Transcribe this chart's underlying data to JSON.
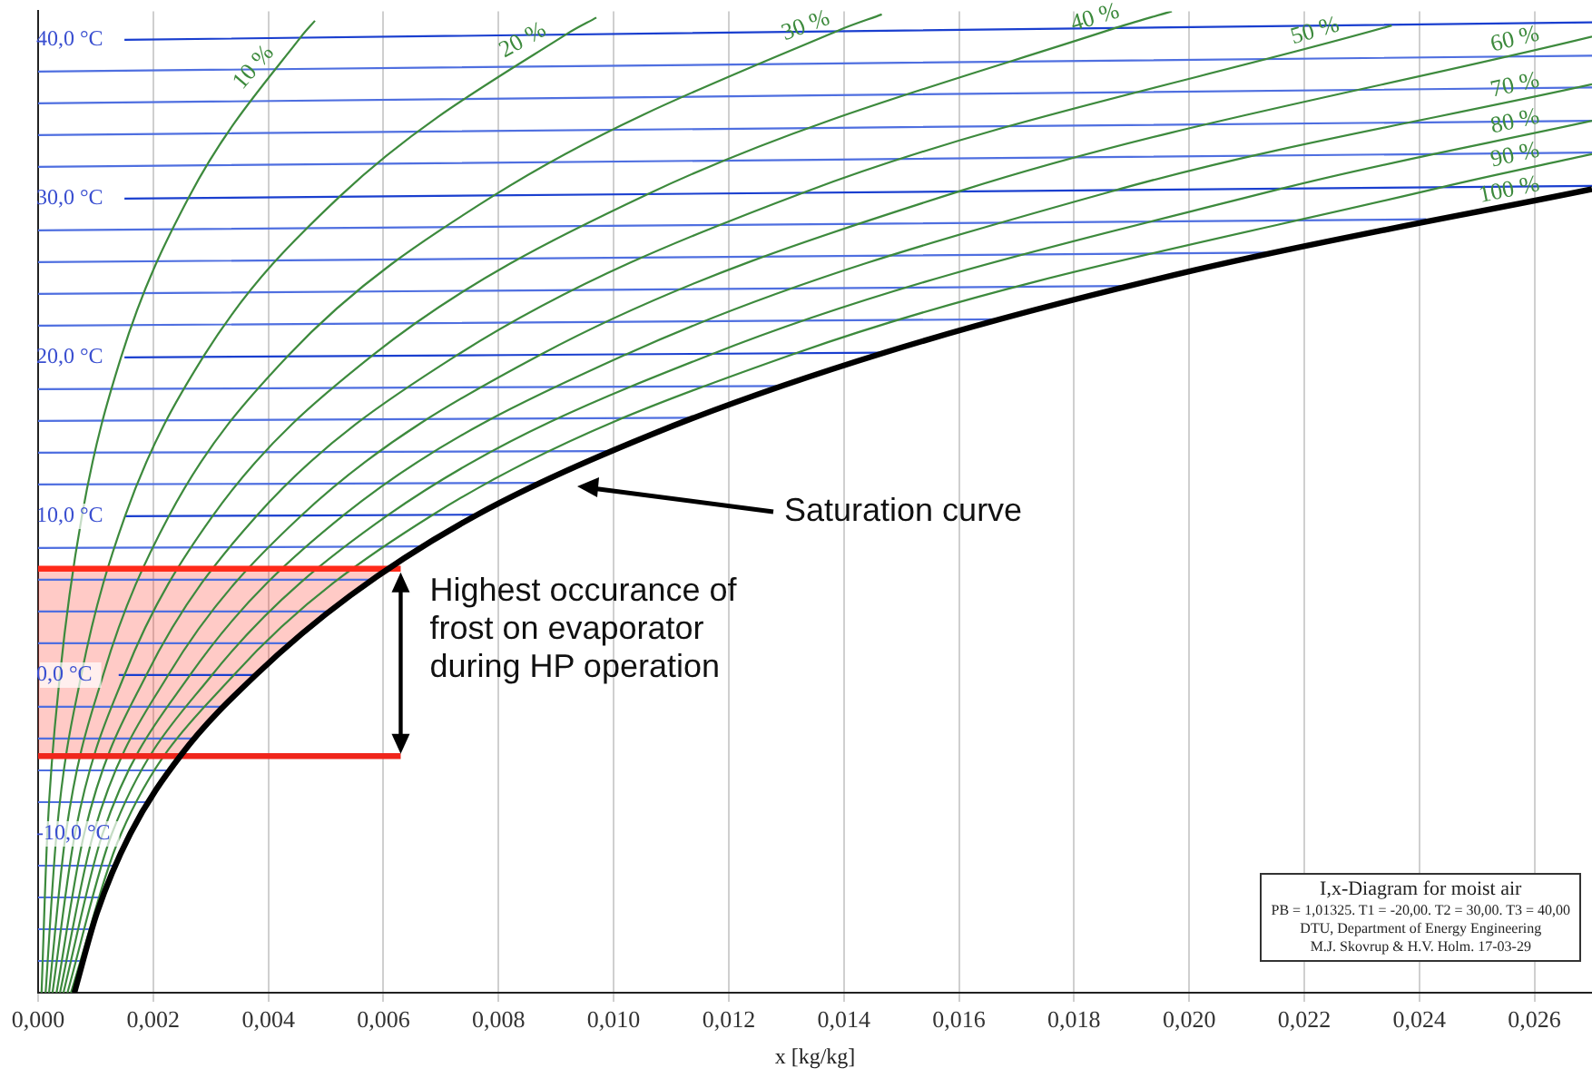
{
  "chart_data": {
    "type": "line",
    "xlabel": "x [kg/kg]",
    "xlim": [
      0,
      0.027
    ],
    "ylim": [
      -20,
      41.8
    ],
    "xticks": [
      {
        "value": 0,
        "label": "0,000"
      },
      {
        "value": 0.002,
        "label": "0,002"
      },
      {
        "value": 0.004,
        "label": "0,004"
      },
      {
        "value": 0.006,
        "label": "0,006"
      },
      {
        "value": 0.008,
        "label": "0,008"
      },
      {
        "value": 0.01,
        "label": "0,010"
      },
      {
        "value": 0.012,
        "label": "0,012"
      },
      {
        "value": 0.014,
        "label": "0,014"
      },
      {
        "value": 0.016,
        "label": "0,016"
      },
      {
        "value": 0.018,
        "label": "0,018"
      },
      {
        "value": 0.02,
        "label": "0,020"
      },
      {
        "value": 0.022,
        "label": "0,022"
      },
      {
        "value": 0.024,
        "label": "0,024"
      },
      {
        "value": 0.026,
        "label": "0,026"
      }
    ],
    "yticks": [
      {
        "value": -10,
        "label": "-10,0 °C"
      },
      {
        "value": 0,
        "label": "0,0 °C"
      },
      {
        "value": 10,
        "label": "10,0 °C"
      },
      {
        "value": 20,
        "label": "20,0 °C"
      },
      {
        "value": 30,
        "label": "30,0 °C"
      },
      {
        "value": 40,
        "label": "40,0 °C"
      }
    ],
    "grid": "x",
    "legend": false,
    "annotations": [
      "I,x-Diagram for moist air",
      "PB = 1,01325. T1 = -20,00. T2 = 30,00. T3 = 40,00",
      "DTU, Department of Energy Engineering",
      "M.J. Skovrup & H.V. Holm. 17-03-29",
      "Saturation curve",
      {
        "text": "Highest occurance of frost on evaporator during HP operation",
        "x": 0.0063,
        "y": 6.7
      }
    ],
    "series": [
      {
        "color": "#4f6fe0",
        "x": [
          0,
          0.00077
        ],
        "values": [
          -18,
          -18
        ]
      },
      {
        "color": "#4f6fe0",
        "x": [
          0,
          0.00093
        ],
        "values": [
          -16,
          -16
        ]
      },
      {
        "color": "#4f6fe0",
        "x": [
          0,
          0.00112
        ],
        "values": [
          -14,
          -14
        ]
      },
      {
        "color": "#4f6fe0",
        "x": [
          0,
          0.00134
        ],
        "values": [
          -12,
          -12
        ]
      },
      {
        "color": "#4f6fe0",
        "x": [
          0,
          0.00191
        ],
        "values": [
          -8,
          -8
        ]
      },
      {
        "color": "#4f6fe0",
        "x": [
          0,
          0.00227
        ],
        "values": [
          -6,
          -6
        ]
      },
      {
        "color": "#4f6fe0",
        "x": [
          0,
          0.00269
        ],
        "values": [
          -4,
          -4
        ]
      },
      {
        "color": "#4f6fe0",
        "x": [
          0,
          0.00319
        ],
        "values": [
          -2,
          -2
        ]
      },
      {
        "color": "#1a3fcf",
        "x": [
          0.0014,
          0.00378
        ],
        "values": [
          0,
          0
        ]
      },
      {
        "color": "#4f6fe0",
        "x": [
          0,
          0.00436
        ],
        "values": [
          2,
          2
        ]
      },
      {
        "color": "#4f6fe0",
        "x": [
          0,
          0.00503
        ],
        "values": [
          4,
          4
        ]
      },
      {
        "color": "#4f6fe0",
        "x": [
          0,
          0.0058
        ],
        "values": [
          6,
          6
        ]
      },
      {
        "color": "#4f6fe0",
        "x": [
          0,
          0.00666
        ],
        "values": [
          8,
          8.1
        ]
      },
      {
        "color": "#1a3fcf",
        "x": [
          0.0015,
          0.00763
        ],
        "values": [
          10,
          10.1
        ]
      },
      {
        "color": "#4f6fe0",
        "x": [
          0,
          0.00873
        ],
        "values": [
          12,
          12.1
        ]
      },
      {
        "color": "#4f6fe0",
        "x": [
          0,
          0.00997
        ],
        "values": [
          14,
          14.1
        ]
      },
      {
        "color": "#4f6fe0",
        "x": [
          0,
          0.01137
        ],
        "values": [
          16,
          16.2
        ]
      },
      {
        "color": "#4f6fe0",
        "x": [
          0,
          0.01294
        ],
        "values": [
          18,
          18.2
        ]
      },
      {
        "color": "#1a3fcf",
        "x": [
          0.0015,
          0.0147
        ],
        "values": [
          20,
          20.3
        ]
      },
      {
        "color": "#4f6fe0",
        "x": [
          0,
          0.01668
        ],
        "values": [
          22,
          22.4
        ]
      },
      {
        "color": "#4f6fe0",
        "x": [
          0,
          0.0189
        ],
        "values": [
          24,
          24.5
        ]
      },
      {
        "color": "#4f6fe0",
        "x": [
          0,
          0.02136
        ],
        "values": [
          26,
          26.6
        ]
      },
      {
        "color": "#4f6fe0",
        "x": [
          0,
          0.02412
        ],
        "values": [
          28,
          28.7
        ]
      },
      {
        "color": "#1a3fcf",
        "x": [
          0.0015,
          0.027
        ],
        "values": [
          30,
          30.8
        ]
      },
      {
        "color": "#4f6fe0",
        "x": [
          0,
          0.027
        ],
        "values": [
          32,
          32.9
        ]
      },
      {
        "color": "#4f6fe0",
        "x": [
          0,
          0.027
        ],
        "values": [
          34,
          34.9
        ]
      },
      {
        "color": "#4f6fe0",
        "x": [
          0,
          0.027
        ],
        "values": [
          36,
          37
        ]
      },
      {
        "color": "#4f6fe0",
        "x": [
          0,
          0.027
        ],
        "values": [
          38,
          39
        ]
      },
      {
        "color": "#1a3fcf",
        "x": [
          0.0015,
          0.027
        ],
        "values": [
          40,
          41.1
        ]
      },
      {
        "name": "10 %",
        "color": "#3d8a3d",
        "x": [
          6e-05,
          0.00016,
          0.00038,
          0.00076,
          0.00144,
          0.00262,
          0.00457,
          0.00481
        ],
        "values": [
          -20,
          -10,
          0,
          10,
          20,
          30.1,
          40.2,
          41.2
        ]
      },
      {
        "name": "20 %",
        "color": "#3d8a3d",
        "x": [
          0.00013,
          0.00032,
          0.00075,
          0.00151,
          0.00288,
          0.00526,
          0.0092,
          0.0097
        ],
        "values": [
          -20,
          -10,
          0,
          10,
          20.1,
          30.2,
          40.4,
          41.4
        ]
      },
      {
        "name": "30 %",
        "color": "#3d8a3d",
        "x": [
          0.00019,
          0.00048,
          0.00113,
          0.00227,
          0.00434,
          0.00792,
          0.01391,
          0.01466
        ],
        "values": [
          -20,
          -10,
          0,
          10,
          20.1,
          30.2,
          40.6,
          41.6
        ]
      },
      {
        "name": "40 %",
        "color": "#3d8a3d",
        "x": [
          0.00025,
          0.00064,
          0.0015,
          0.00303,
          0.0058,
          0.0106,
          0.01868,
          0.0197
        ],
        "values": [
          -20,
          -10,
          0,
          10,
          20.1,
          30.3,
          40.7,
          41.8
        ]
      },
      {
        "name": "50 %",
        "color": "#3d8a3d",
        "x": [
          0.00032,
          0.0008,
          0.00188,
          0.00379,
          0.00726,
          0.01331,
          0.02352
        ],
        "values": [
          -20,
          -10,
          0,
          10,
          20.1,
          30.4,
          40.9
        ]
      },
      {
        "name": "60 %",
        "color": "#3d8a3d",
        "x": [
          0.00038,
          0.00096,
          0.00226,
          0.00456,
          0.00874,
          0.01604,
          0.027
        ],
        "values": [
          -20,
          -10,
          0,
          10,
          20.2,
          30.5,
          40.2
        ]
      },
      {
        "name": "70 %",
        "color": "#3d8a3d",
        "x": [
          0.00044,
          0.00112,
          0.00264,
          0.00532,
          0.01022,
          0.01879,
          0.027
        ],
        "values": [
          -20,
          -10,
          0,
          10.1,
          20.2,
          30.6,
          37.2
        ]
      },
      {
        "name": "80 %",
        "color": "#3d8a3d",
        "x": [
          0.00051,
          0.00128,
          0.00302,
          0.00609,
          0.0117,
          0.02157,
          0.027
        ],
        "values": [
          -20,
          -10,
          0,
          10.1,
          20.2,
          30.6,
          34.9
        ]
      },
      {
        "name": "90 %",
        "color": "#3d8a3d",
        "x": [
          0.00057,
          0.00144,
          0.0034,
          0.00686,
          0.01319,
          0.02437,
          0.027
        ],
        "values": [
          -20,
          -10,
          0,
          10.1,
          20.3,
          30.7,
          32.8
        ]
      },
      {
        "color": "#ff2a1a",
        "x": [
          0,
          0.00245,
          0.00378,
          0.00542,
          0.0062,
          0.0063
        ],
        "values": [
          6.7,
          6.7,
          6.7,
          6.7,
          6.7,
          6.7
        ],
        "lower": [
          -5.1,
          -5.1,
          0,
          5,
          6.7,
          6.7
        ],
        "upper": [
          6.7,
          6.7,
          6.7,
          6.7,
          6.7,
          6.7
        ]
      },
      {
        "color": "#f0261c",
        "x": [
          0,
          0.0063
        ],
        "values": [
          -5.1,
          -5.1
        ]
      },
      {
        "name": "100 %",
        "color": "#000000",
        "x": [
          0.00063,
          0.00102,
          0.0016,
          0.00249,
          0.00378,
          0.00542,
          0.00763,
          0.01069,
          0.0147,
          0.0201,
          0.027
        ],
        "values": [
          -20,
          -15,
          -10,
          -5,
          0,
          5,
          10.1,
          15.2,
          20.3,
          25.5,
          30.6
        ]
      }
    ]
  }
}
